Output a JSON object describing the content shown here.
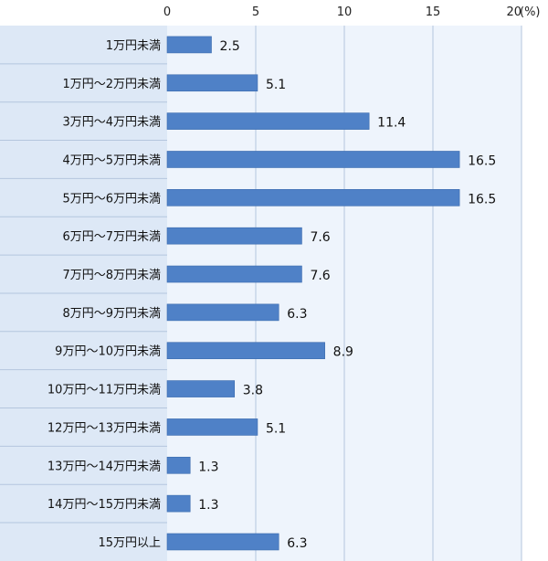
{
  "chart_data": {
    "type": "bar",
    "orientation": "horizontal",
    "title": "",
    "xlabel": "",
    "ylabel": "",
    "xlim": [
      0,
      20
    ],
    "ticks": [
      0,
      5,
      10,
      15,
      20
    ],
    "tick_labels": [
      "0",
      "5",
      "10",
      "15",
      "20"
    ],
    "unit_label": "(%)",
    "grid": true,
    "categories": [
      "1万円未満",
      "1万円〜2万円未満",
      "3万円〜4万円未満",
      "4万円〜5万円未満",
      "5万円〜6万円未満",
      "6万円〜7万円未満",
      "7万円〜8万円未満",
      "8万円〜9万円未満",
      "9万円〜10万円未満",
      "10万円〜11万円未満",
      "12万円〜13万円未満",
      "13万円〜14万円未満",
      "14万円〜15万円未満",
      "15万円以上"
    ],
    "values": [
      2.5,
      5.1,
      11.4,
      16.5,
      16.5,
      7.6,
      7.6,
      6.3,
      8.9,
      3.8,
      5.1,
      1.3,
      1.3,
      6.3
    ],
    "value_labels": [
      "2.5",
      "5.1",
      "11.4",
      "16.5",
      "16.5",
      "7.6",
      "7.6",
      "6.3",
      "8.9",
      "3.8",
      "5.1",
      "1.3",
      "1.3",
      "6.3"
    ],
    "colors": {
      "bar": "#4f81c7",
      "bar_edge": "#3a6aad",
      "label_panel": "#dde8f6",
      "plot_bg": "#eef4fc",
      "grid": "#b4c6de",
      "row_divider": "#b4c6de"
    }
  }
}
